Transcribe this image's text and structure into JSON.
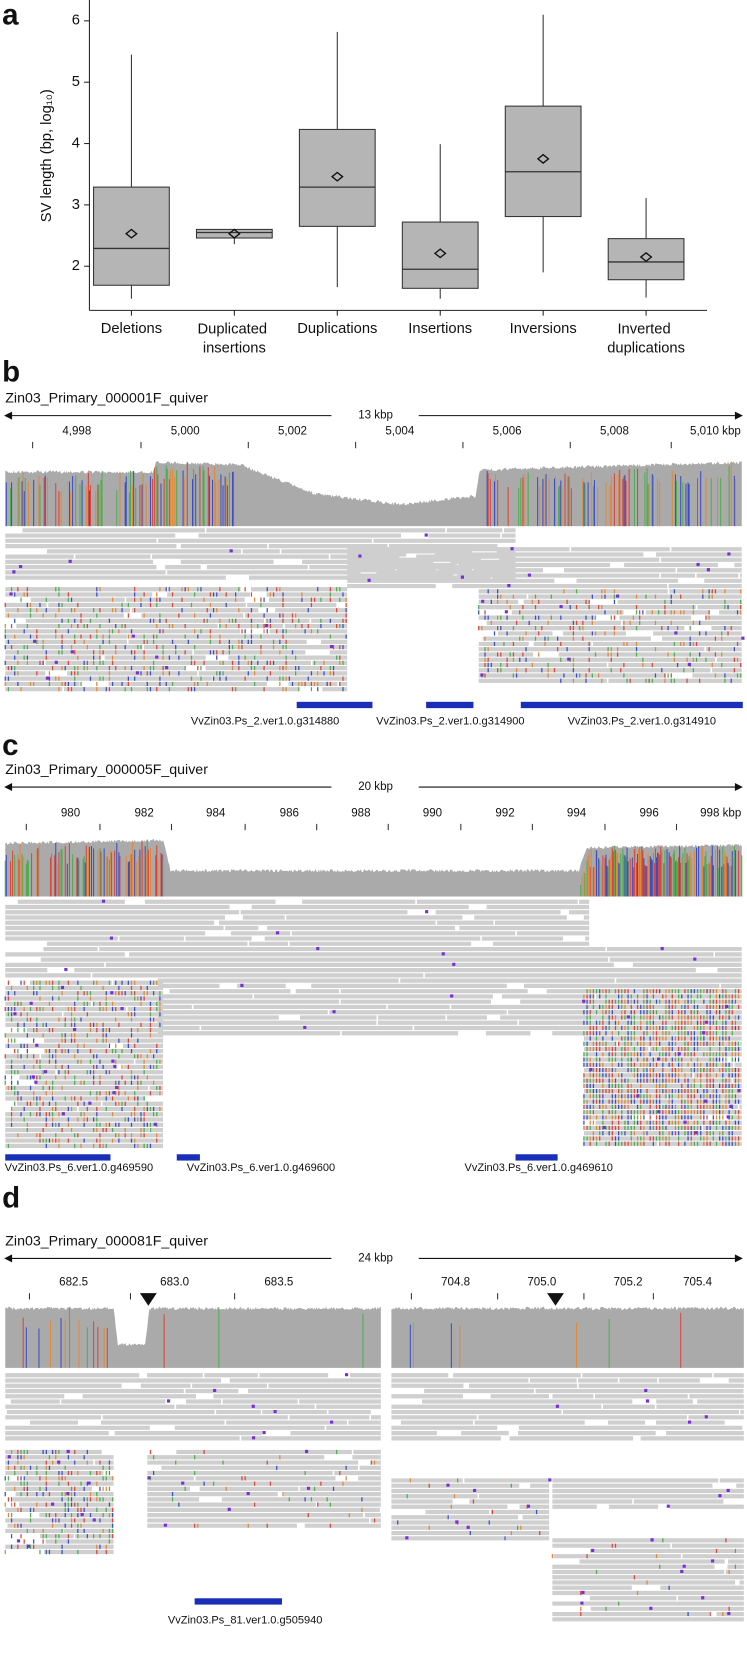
{
  "chart_data": {
    "type": "box",
    "panel_label": "a",
    "y_label": "SV length (bp, log₁₀)",
    "categories": [
      "Deletions",
      "Duplicated insertions",
      "Duplications",
      "Insertions",
      "Inversions",
      "Inverted duplications"
    ],
    "boxes": [
      {
        "min": 1.47,
        "q1": 1.69,
        "median": 2.29,
        "q3": 3.29,
        "max": 5.45,
        "mean": 2.53
      },
      {
        "min": 2.36,
        "q1": 2.46,
        "median": 2.55,
        "q3": 2.6,
        "max": 2.6,
        "mean": 2.53
      },
      {
        "min": 1.66,
        "q1": 2.65,
        "median": 3.29,
        "q3": 4.23,
        "max": 5.82,
        "mean": 3.46
      },
      {
        "min": 1.47,
        "q1": 1.64,
        "median": 1.95,
        "q3": 2.72,
        "max": 3.99,
        "mean": 2.21
      },
      {
        "min": 1.9,
        "q1": 2.81,
        "median": 3.54,
        "q3": 4.61,
        "max": 6.1,
        "mean": 3.75
      },
      {
        "min": 1.49,
        "q1": 1.78,
        "median": 2.07,
        "q3": 2.45,
        "max": 3.11,
        "mean": 2.15
      }
    ],
    "color": "#b5b5b5",
    "ylim": [
      1.28,
      6.34
    ],
    "yticks": [
      2,
      3,
      4,
      5,
      6
    ]
  },
  "genome_views": [
    {
      "panel_label": "b",
      "contig": "Zin03_Primary_000001F_quiver",
      "span": "13 kbp",
      "ticks": [
        "4,998",
        "5,000",
        "5,002",
        "5,004",
        "5,006",
        "5,008",
        "5,010 kbp"
      ],
      "genes": [
        "VvZin03.Ps_2.ver1.0.g314880",
        "VvZin03.Ps_2.ver1.0.g314900",
        "VvZin03.Ps_2.ver1.0.g314910"
      ]
    },
    {
      "panel_label": "c",
      "contig": "Zin03_Primary_000005F_quiver",
      "span": "20 kbp",
      "ticks": [
        "980",
        "982",
        "984",
        "986",
        "988",
        "990",
        "992",
        "994",
        "996",
        "998 kbp"
      ],
      "genes": [
        "VvZin03.Ps_6.ver1.0.g469590",
        "VvZin03.Ps_6.ver1.0.g469600",
        "VvZin03.Ps_6.ver1.0.g469610"
      ]
    },
    {
      "panel_label": "d",
      "contig": "Zin03_Primary_000081F_quiver",
      "span": "24 kbp",
      "ticks": [
        "682.5",
        "683.0",
        "683.5",
        "704.8",
        "705.0",
        "705.2",
        "705.4"
      ],
      "genes": [
        "VvZin03.Ps_81.ver1.0.g505940"
      ]
    }
  ]
}
